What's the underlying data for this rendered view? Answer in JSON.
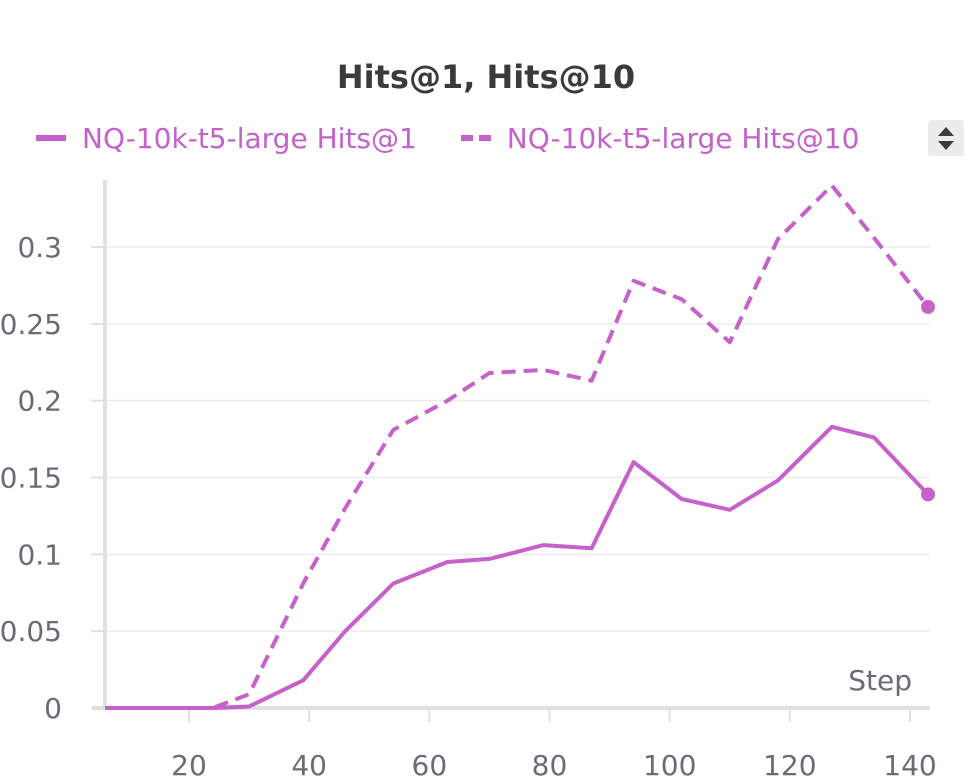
{
  "chart_data": {
    "type": "line",
    "title": "Hits@1, Hits@10",
    "xlabel": "Step",
    "ylabel": "",
    "xlim": [
      0,
      143
    ],
    "ylim": [
      0,
      0.34
    ],
    "x_ticks": [
      20,
      40,
      60,
      80,
      100,
      120,
      140
    ],
    "y_ticks": [
      0,
      0.05,
      0.1,
      0.15,
      0.2,
      0.25,
      0.3
    ],
    "grid": true,
    "legend_position": "top",
    "series": [
      {
        "name": "NQ-10k-t5-large Hits@1",
        "style": "solid",
        "color": "#c561c8",
        "x": [
          0,
          24,
          30,
          39,
          46,
          54,
          63,
          70,
          79,
          87,
          94,
          102,
          110,
          118,
          127,
          134,
          143
        ],
        "y": [
          0,
          0,
          0.001,
          0.018,
          0.05,
          0.081,
          0.095,
          0.097,
          0.106,
          0.104,
          0.16,
          0.136,
          0.129,
          0.148,
          0.183,
          0.176,
          0.139
        ]
      },
      {
        "name": "NQ-10k-t5-large Hits@10",
        "style": "dashed",
        "color": "#c561c8",
        "x": [
          0,
          24,
          30,
          39,
          46,
          54,
          63,
          70,
          79,
          87,
          94,
          102,
          110,
          118,
          127,
          134,
          143
        ],
        "y": [
          0,
          0,
          0.009,
          0.081,
          0.13,
          0.181,
          0.2,
          0.218,
          0.22,
          0.213,
          0.278,
          0.266,
          0.238,
          0.305,
          0.34,
          0.306,
          0.261
        ]
      }
    ]
  },
  "legend": {
    "items": [
      {
        "label": "NQ-10k-t5-large Hits@1"
      },
      {
        "label": "NQ-10k-t5-large Hits@10"
      }
    ]
  },
  "colors": {
    "series": "#c561c8",
    "axis": "#e0e0e0",
    "grid": "#ececec",
    "tick_text": "#6b6b73"
  }
}
